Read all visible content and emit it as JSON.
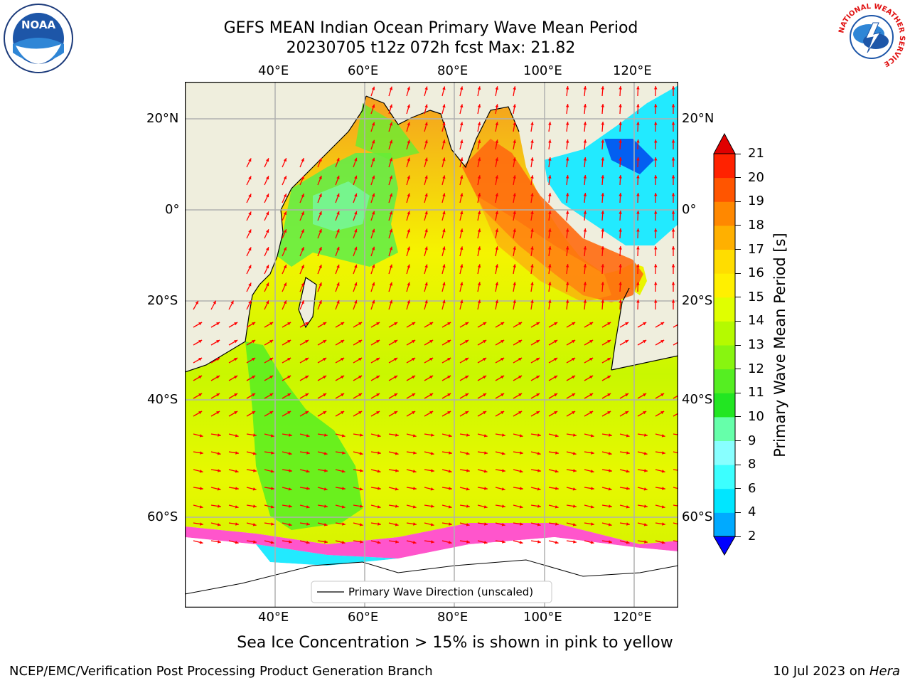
{
  "header": {
    "title_line1": "GEFS MEAN Indian Ocean Primary Wave Mean Period",
    "title_line2": "20230705 t12z 072h fcst   Max: 21.82"
  },
  "logos": {
    "noaa_text": "NOAA",
    "nws_ring_text": "NATIONAL WEATHER SERVICE"
  },
  "map": {
    "lon_labels": [
      "40°E",
      "60°E",
      "80°E",
      "100°E",
      "120°E"
    ],
    "lat_labels": [
      "20°N",
      "0°",
      "20°S",
      "40°S",
      "60°S"
    ],
    "legend_text": "Primary Wave Direction (unscaled)",
    "colors": {
      "land": "#efeedd",
      "ocean_high": "#ff5a10",
      "ocean_mid": "#f3fa00",
      "ocean_low": "#3cf03c",
      "ice": "#ff55cc",
      "arrow": "#ff0000"
    }
  },
  "colorbar": {
    "label": "Primary Wave Mean Period [s]",
    "ticks": [
      "2",
      "4",
      "6",
      "8",
      "9",
      "10",
      "11",
      "12",
      "13",
      "14",
      "15",
      "16",
      "17",
      "18",
      "19",
      "20",
      "21"
    ],
    "colors": [
      "#0050f0",
      "#00aaff",
      "#00e6ff",
      "#3cffff",
      "#88ffff",
      "#66ffaa",
      "#22e622",
      "#55ee22",
      "#88f510",
      "#b5fa00",
      "#e0ff00",
      "#fff000",
      "#ffdd00",
      "#ffb000",
      "#ff8800",
      "#ff5500",
      "#ff2200",
      "#e80000"
    ],
    "under_color": "#0000ff",
    "over_color": "#e00000"
  },
  "notes": {
    "sea_ice": "Sea Ice Concentration > 15% is shown in pink to yellow"
  },
  "footer": {
    "left": "NCEP/EMC/Verification Post Processing Product Generation Branch",
    "right_date": "10 Jul 2023 on ",
    "right_host": "Hera"
  }
}
